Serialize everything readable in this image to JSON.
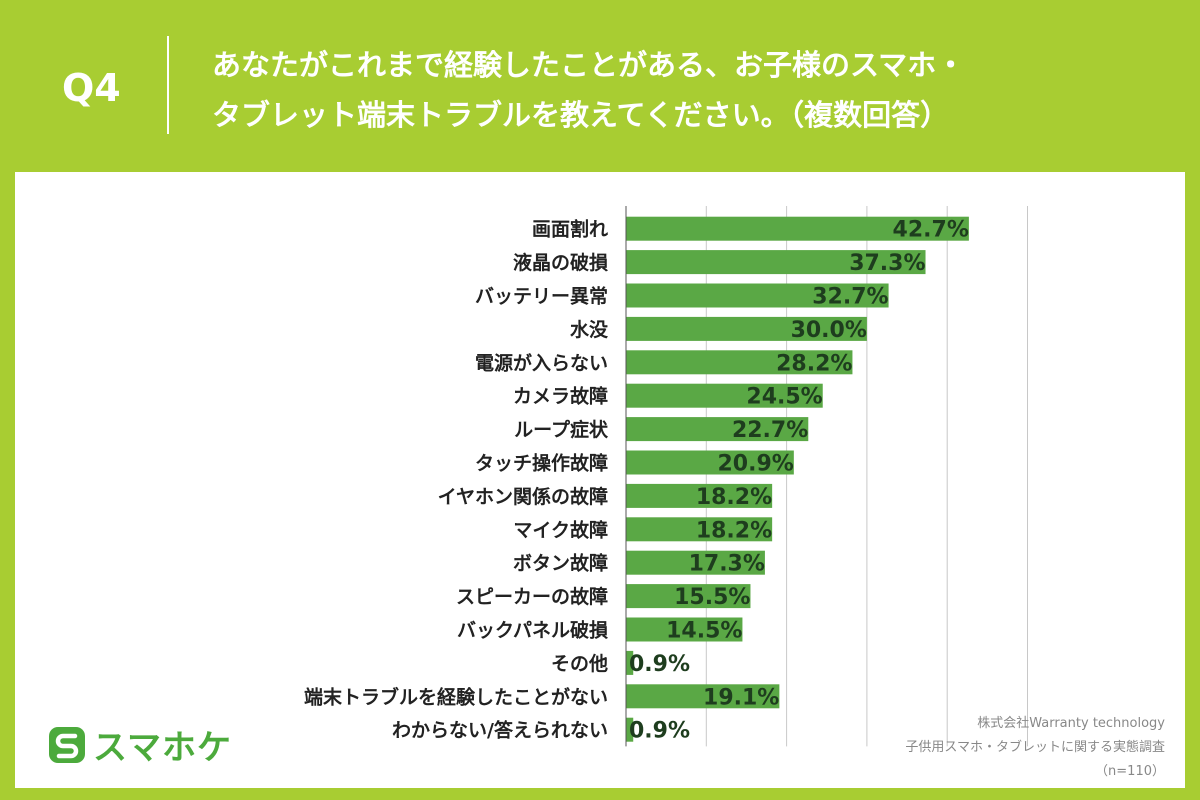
{
  "header": {
    "question_number": "Q4",
    "title_line1": "あなたがこれまで経験したことがある、お子様のスマホ・",
    "title_line2": "タブレット端末トラブルを教えてください。（複数回答）"
  },
  "colors": {
    "background": "#a8cd32",
    "bar": "#5aa845",
    "logo": "#4caa3c"
  },
  "chart_data": {
    "type": "bar",
    "orientation": "horizontal",
    "categories": [
      "画面割れ",
      "液晶の破損",
      "バッテリー異常",
      "水没",
      "電源が入らない",
      "カメラ故障",
      "ループ症状",
      "タッチ操作故障",
      "イヤホン関係の故障",
      "マイク故障",
      "ボタン故障",
      "スピーカーの故障",
      "バックパネル破損",
      "その他",
      "端末トラブルを経験したことがない",
      "わからない/答えられない"
    ],
    "values": [
      42.7,
      37.3,
      32.7,
      30.0,
      28.2,
      24.5,
      22.7,
      20.9,
      18.2,
      18.2,
      17.3,
      15.5,
      14.5,
      0.9,
      19.1,
      0.9
    ],
    "value_labels": [
      "42.7%",
      "37.3%",
      "32.7%",
      "30.0%",
      "28.2%",
      "24.5%",
      "22.7%",
      "20.9%",
      "18.2%",
      "18.2%",
      "17.3%",
      "15.5%",
      "14.5%",
      "0.9%",
      "19.1%",
      "0.9%"
    ],
    "xlim": [
      0,
      50
    ],
    "grid": true
  },
  "logo": {
    "text": "スマホケ"
  },
  "source": {
    "company": "株式会社Warranty technology",
    "survey": "子供用スマホ・タブレットに関する実態調査",
    "sample": "（n=110）"
  }
}
